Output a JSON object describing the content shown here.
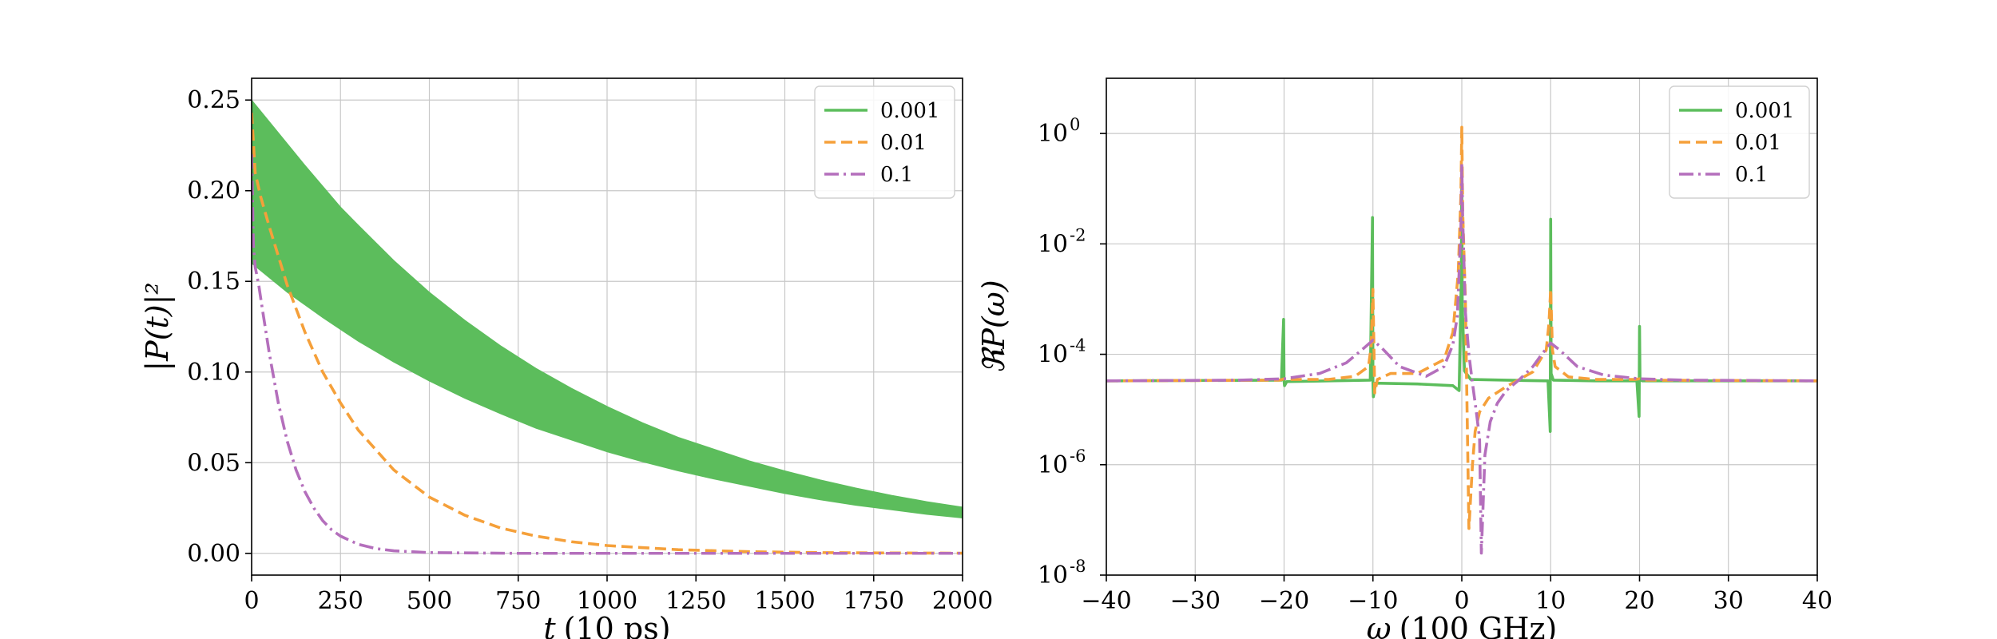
{
  "chart_data": [
    {
      "type": "line",
      "xlabel_var": "t",
      "xlabel_unit": "(10 ps)",
      "ylabel": "|P(t)|²",
      "xlim": [
        0,
        2000
      ],
      "ylim": [
        -0.012,
        0.262
      ],
      "xticks": [
        0,
        250,
        500,
        750,
        1000,
        1250,
        1500,
        1750,
        2000
      ],
      "xtick_labels": [
        "0",
        "250",
        "500",
        "750",
        "1000",
        "1250",
        "1500",
        "1750",
        "2000"
      ],
      "yticks": [
        0.0,
        0.05,
        0.1,
        0.15,
        0.2,
        0.25
      ],
      "ytick_labels": [
        "0.00",
        "0.05",
        "0.10",
        "0.15",
        "0.20",
        "0.25"
      ],
      "grid": true,
      "legend_position": "top-right",
      "series": [
        {
          "name": "0.001",
          "color": "#5cbd5c",
          "style": "solid",
          "render": "band",
          "x": [
            0,
            50,
            100,
            150,
            200,
            250,
            300,
            400,
            500,
            600,
            700,
            800,
            900,
            1000,
            1100,
            1200,
            1300,
            1400,
            1500,
            1600,
            1700,
            1800,
            1900,
            2000
          ],
          "upper": [
            0.25,
            0.238,
            0.226,
            0.214,
            0.2025,
            0.191,
            0.181,
            0.1615,
            0.144,
            0.1285,
            0.1145,
            0.102,
            0.091,
            0.081,
            0.072,
            0.064,
            0.0575,
            0.051,
            0.0455,
            0.0405,
            0.036,
            0.032,
            0.0285,
            0.0255
          ],
          "lower": [
            0.16,
            0.152,
            0.144,
            0.137,
            0.13,
            0.1235,
            0.117,
            0.1055,
            0.095,
            0.0855,
            0.077,
            0.069,
            0.0625,
            0.056,
            0.0505,
            0.0455,
            0.041,
            0.037,
            0.033,
            0.0295,
            0.0265,
            0.024,
            0.0215,
            0.0195
          ]
        },
        {
          "name": "0.01",
          "color": "#f5a03a",
          "style": "dashed",
          "render": "line",
          "x": [
            0,
            10,
            25,
            50,
            100,
            150,
            200,
            250,
            300,
            400,
            500,
            600,
            700,
            800,
            900,
            1000,
            1200,
            1400,
            1600,
            1800,
            2000
          ],
          "y": [
            0.243,
            0.21,
            0.197,
            0.18,
            0.148,
            0.122,
            0.1,
            0.083,
            0.068,
            0.046,
            0.031,
            0.021,
            0.014,
            0.0095,
            0.0064,
            0.0043,
            0.002,
            0.0009,
            0.0004,
            0.0002,
            0.0001
          ]
        },
        {
          "name": "0.1",
          "color": "#b46fbc",
          "style": "dashdot",
          "render": "line",
          "x": [
            0,
            5,
            10,
            20,
            30,
            50,
            75,
            100,
            125,
            150,
            175,
            200,
            225,
            250,
            300,
            350,
            400,
            500,
            750,
            1000,
            1500,
            2000
          ],
          "y": [
            0.22,
            0.17,
            0.158,
            0.148,
            0.135,
            0.11,
            0.083,
            0.062,
            0.046,
            0.034,
            0.025,
            0.018,
            0.013,
            0.0095,
            0.005,
            0.0026,
            0.0014,
            0.0004,
            0.0,
            0.0,
            0.0,
            0.0
          ]
        }
      ]
    },
    {
      "type": "line",
      "xlabel_var": "ω",
      "xlabel_unit": "(100 GHz)",
      "ylabel": "ℜP(ω)",
      "xlim": [
        -40,
        40
      ],
      "yscale": "log",
      "ylim_exp": [
        -8,
        1.0
      ],
      "xticks": [
        -40,
        -30,
        -20,
        -10,
        0,
        10,
        20,
        30,
        40
      ],
      "xtick_labels": [
        "−40",
        "−30",
        "−20",
        "−10",
        "0",
        "10",
        "20",
        "30",
        "40"
      ],
      "yticks_exp": [
        -8,
        -6,
        -4,
        -2,
        0
      ],
      "ytick_labels": [
        "10",
        "10",
        "10",
        "10",
        "10"
      ],
      "ytick_exponents": [
        "-8",
        "-6",
        "-4",
        "-2",
        "0"
      ],
      "grid": true,
      "legend_position": "top-right",
      "series": [
        {
          "name": "0.001",
          "color": "#5cbd5c",
          "style": "solid",
          "x": [
            -40,
            -20.3,
            -20.05,
            -20,
            -19.95,
            -19.7,
            -15,
            -10.3,
            -10.05,
            -10,
            -9.95,
            -9.7,
            -5,
            -1,
            -0.3,
            -0.05,
            0,
            0.05,
            0.3,
            1,
            5,
            9.7,
            9.95,
            10,
            10.05,
            10.3,
            15,
            19.7,
            19.95,
            20,
            20.05,
            20.3,
            40
          ],
          "y": [
            3.3e-05,
            3.4e-05,
            0.00043,
            3.3e-05,
            2.7e-05,
            3.2e-05,
            3.3e-05,
            3.4e-05,
            0.03,
            3.3e-05,
            1.7e-05,
            3e-05,
            2.9e-05,
            2.7e-05,
            2.2e-05,
            0.003,
            0.2,
            0.0008,
            5e-05,
            3.5e-05,
            3.4e-05,
            3.3e-05,
            4e-06,
            0.028,
            4.5e-05,
            3.4e-05,
            3.3e-05,
            3.3e-05,
            7.5e-06,
            0.00032,
            3.5e-05,
            3.3e-05,
            3.3e-05
          ]
        },
        {
          "name": "0.01",
          "color": "#f5a03a",
          "style": "dashed",
          "x": [
            -40,
            -20.5,
            -20,
            -19.5,
            -15,
            -12,
            -10.5,
            -10.2,
            -10,
            -9.8,
            -9.5,
            -8,
            -5,
            -2,
            -1,
            -0.4,
            -0.1,
            0,
            0.1,
            0.4,
            0.8,
            1.2,
            1.5,
            2,
            3,
            5,
            8,
            9.5,
            9.8,
            10,
            10.2,
            10.5,
            12,
            15,
            19.5,
            20,
            20.5,
            40
          ],
          "y": [
            3.3e-05,
            3.4e-05,
            3.6e-05,
            3.5e-05,
            3.5e-05,
            4e-05,
            6e-05,
            0.00014,
            0.0015,
            2e-05,
            3.5e-05,
            4.5e-05,
            4.5e-05,
            8e-05,
            0.00025,
            0.003,
            0.08,
            1.3,
            0.04,
            0.001,
            7e-08,
            1e-06,
            4e-06,
            9e-06,
            1.6e-05,
            2.6e-05,
            4.8e-05,
            0.00012,
            0.00035,
            0.0015,
            0.00012,
            6e-05,
            3.9e-05,
            3.5e-05,
            3.5e-05,
            3.6e-05,
            3.4e-05,
            3.3e-05
          ]
        },
        {
          "name": "0.1",
          "color": "#b46fbc",
          "style": "dashdot",
          "x": [
            -40,
            -25,
            -20,
            -16,
            -13,
            -11,
            -10,
            -9,
            -7,
            -4,
            -2,
            -1,
            -0.5,
            -0.1,
            0,
            0.1,
            0.4,
            0.8,
            1.2,
            1.6,
            2.0,
            2.2,
            2.6,
            3.2,
            4,
            5,
            6.5,
            8,
            9,
            10,
            11,
            13,
            16,
            20,
            25,
            40
          ],
          "y": [
            3.3e-05,
            3.4e-05,
            3.6e-05,
            4.5e-05,
            7e-05,
            0.00013,
            0.00018,
            0.00013,
            6e-05,
            4e-05,
            6e-05,
            0.00015,
            0.0005,
            0.02,
            0.28,
            0.03,
            0.0006,
            0.0001,
            3e-05,
            1e-05,
            3e-06,
            2.5e-08,
            1.5e-06,
            6e-06,
            1.3e-05,
            2.2e-05,
            3.5e-05,
            6e-05,
            0.0001,
            0.00016,
            0.00012,
            6e-05,
            4.2e-05,
            3.6e-05,
            3.4e-05,
            3.3e-05
          ]
        }
      ]
    }
  ]
}
